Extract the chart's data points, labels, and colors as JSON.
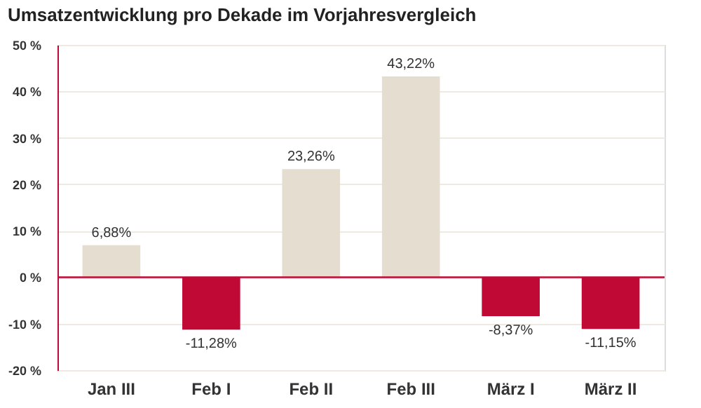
{
  "chart_data": {
    "type": "bar",
    "title": "Umsatzentwicklung pro Dekade im Vorjahresvergleich",
    "categories": [
      "Jan III",
      "Feb I",
      "Feb II",
      "Feb III",
      "März I",
      "März II"
    ],
    "values": [
      6.88,
      -11.28,
      23.26,
      43.22,
      -8.37,
      -11.15
    ],
    "colors": [
      "#e5ddd0",
      "#c00a35",
      "#e5ddd0",
      "#e5ddd0",
      "#c00a35",
      "#c00a35"
    ],
    "value_labels": [
      "6,88%",
      "-11,28%",
      "23,26%",
      "43,22%",
      "-8,37%",
      "-11,15%"
    ],
    "ylim": [
      -20,
      50
    ],
    "yticks": [
      {
        "value": -20,
        "label": "-20 %"
      },
      {
        "value": -10,
        "label": "-10 %"
      },
      {
        "value": 0,
        "label": "0 %"
      },
      {
        "value": 10,
        "label": "10 %"
      },
      {
        "value": 20,
        "label": "20 %"
      },
      {
        "value": 30,
        "label": "30 %"
      },
      {
        "value": 40,
        "label": "40 %"
      },
      {
        "value": 50,
        "label": "50 %"
      }
    ],
    "ref_lines": [
      {
        "axis": "y",
        "value": 0,
        "color": "#c00a35"
      }
    ],
    "grid": "y"
  }
}
